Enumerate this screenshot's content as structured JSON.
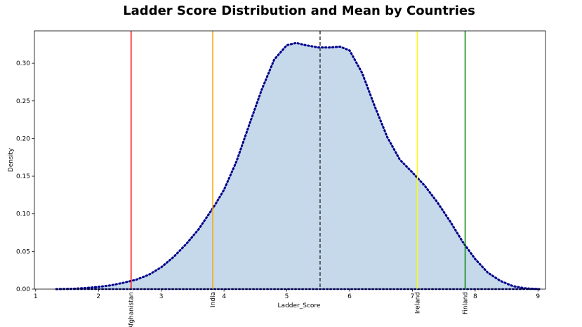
{
  "chart_data": {
    "type": "area",
    "title": "Ladder Score Distribution and Mean by Countries",
    "xlabel": "Ladder_Score",
    "ylabel": "Density",
    "xlim": [
      0.98,
      9.12
    ],
    "ylim": [
      0,
      0.343
    ],
    "xticks": [
      1,
      2,
      3,
      4,
      5,
      6,
      7,
      8,
      9
    ],
    "xtick_labels": [
      "1",
      "2",
      "3",
      "4",
      "5",
      "6",
      "7",
      "8",
      "9"
    ],
    "yticks": [
      0.0,
      0.05,
      0.1,
      0.15,
      0.2,
      0.25,
      0.3
    ],
    "ytick_labels": [
      "0.00",
      "0.05",
      "0.10",
      "0.15",
      "0.20",
      "0.25",
      "0.30"
    ],
    "grid": false,
    "series": [
      {
        "style": "dotted",
        "color": "#00008b",
        "fill": "#c5d9ea",
        "x": [
          1.33,
          1.6,
          1.8,
          2.0,
          2.2,
          2.4,
          2.6,
          2.8,
          3.0,
          3.2,
          3.4,
          3.6,
          3.85,
          4.0,
          4.2,
          4.4,
          4.6,
          4.8,
          5.0,
          5.15,
          5.3,
          5.5,
          5.7,
          5.85,
          6.0,
          6.2,
          6.4,
          6.6,
          6.8,
          7.0,
          7.2,
          7.4,
          7.6,
          7.8,
          8.0,
          8.2,
          8.4,
          8.6,
          8.8,
          9.02
        ],
        "y": [
          0.0,
          0.0005,
          0.0015,
          0.003,
          0.005,
          0.0085,
          0.0125,
          0.019,
          0.029,
          0.043,
          0.06,
          0.08,
          0.111,
          0.132,
          0.17,
          0.218,
          0.265,
          0.305,
          0.324,
          0.327,
          0.324,
          0.321,
          0.321,
          0.322,
          0.317,
          0.287,
          0.243,
          0.202,
          0.172,
          0.155,
          0.137,
          0.115,
          0.09,
          0.063,
          0.04,
          0.022,
          0.011,
          0.004,
          0.001,
          0.0
        ]
      }
    ],
    "mean_line": {
      "x": 5.53,
      "style": "dashed",
      "color": "#333333"
    },
    "country_lines": [
      {
        "label": "Afghanistan",
        "x": 2.52,
        "color": "#ff0000"
      },
      {
        "label": "India",
        "x": 3.82,
        "color": "#ffa500"
      },
      {
        "label": "Ireland",
        "x": 7.08,
        "color": "#ffff00"
      },
      {
        "label": "Finland",
        "x": 7.84,
        "color": "#008000"
      }
    ]
  }
}
